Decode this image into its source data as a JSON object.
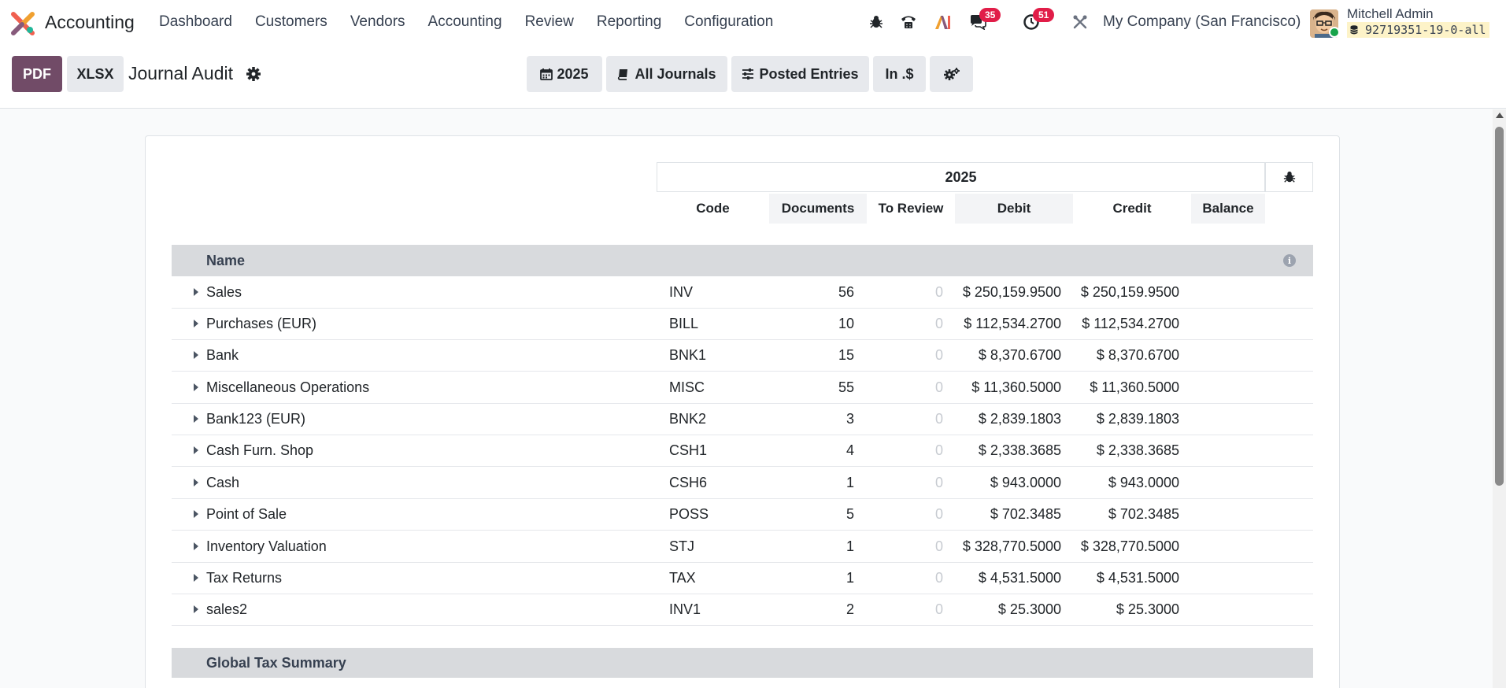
{
  "app": {
    "name": "Accounting"
  },
  "menu": [
    "Dashboard",
    "Customers",
    "Vendors",
    "Accounting",
    "Review",
    "Reporting",
    "Configuration"
  ],
  "systray": {
    "messages_count": "35",
    "activities_count": "51",
    "company": "My Company (San Francisco)",
    "user_name": "Mitchell Admin",
    "database": "92719351-19-0-all"
  },
  "control": {
    "pdf_label": "PDF",
    "xlsx_label": "XLSX",
    "title": "Journal Audit",
    "filters": {
      "period": "2025",
      "journals": "All Journals",
      "entries": "Posted Entries",
      "currency": "In .$"
    }
  },
  "report": {
    "period": "2025",
    "columns": [
      "Code",
      "Documents",
      "To Review",
      "Debit",
      "Credit",
      "Balance"
    ],
    "name_header": "Name",
    "rows": [
      {
        "name": "Sales",
        "code": "INV",
        "documents": "56",
        "to_review": "0",
        "debit": "$ 250,159.9500",
        "credit": "$ 250,159.9500"
      },
      {
        "name": "Purchases (EUR)",
        "code": "BILL",
        "documents": "10",
        "to_review": "0",
        "debit": "$ 112,534.2700",
        "credit": "$ 112,534.2700"
      },
      {
        "name": "Bank",
        "code": "BNK1",
        "documents": "15",
        "to_review": "0",
        "debit": "$ 8,370.6700",
        "credit": "$ 8,370.6700"
      },
      {
        "name": "Miscellaneous Operations",
        "code": "MISC",
        "documents": "55",
        "to_review": "0",
        "debit": "$ 11,360.5000",
        "credit": "$ 11,360.5000"
      },
      {
        "name": "Bank123 (EUR)",
        "code": "BNK2",
        "documents": "3",
        "to_review": "0",
        "debit": "$ 2,839.1803",
        "credit": "$ 2,839.1803"
      },
      {
        "name": "Cash Furn. Shop",
        "code": "CSH1",
        "documents": "4",
        "to_review": "0",
        "debit": "$ 2,338.3685",
        "credit": "$ 2,338.3685"
      },
      {
        "name": "Cash",
        "code": "CSH6",
        "documents": "1",
        "to_review": "0",
        "debit": "$ 943.0000",
        "credit": "$ 943.0000"
      },
      {
        "name": "Point of Sale",
        "code": "POSS",
        "documents": "5",
        "to_review": "0",
        "debit": "$ 702.3485",
        "credit": "$ 702.3485"
      },
      {
        "name": "Inventory Valuation",
        "code": "STJ",
        "documents": "1",
        "to_review": "0",
        "debit": "$ 328,770.5000",
        "credit": "$ 328,770.5000"
      },
      {
        "name": "Tax Returns",
        "code": "TAX",
        "documents": "1",
        "to_review": "0",
        "debit": "$ 4,531.5000",
        "credit": "$ 4,531.5000"
      },
      {
        "name": "sales2",
        "code": "INV1",
        "documents": "2",
        "to_review": "0",
        "debit": "$ 25.3000",
        "credit": "$ 25.3000"
      }
    ],
    "global_tax_summary": "Global Tax Summary"
  },
  "colors": {
    "primary": "#714b67",
    "badge": "#e11d48",
    "online": "#16a34a"
  }
}
